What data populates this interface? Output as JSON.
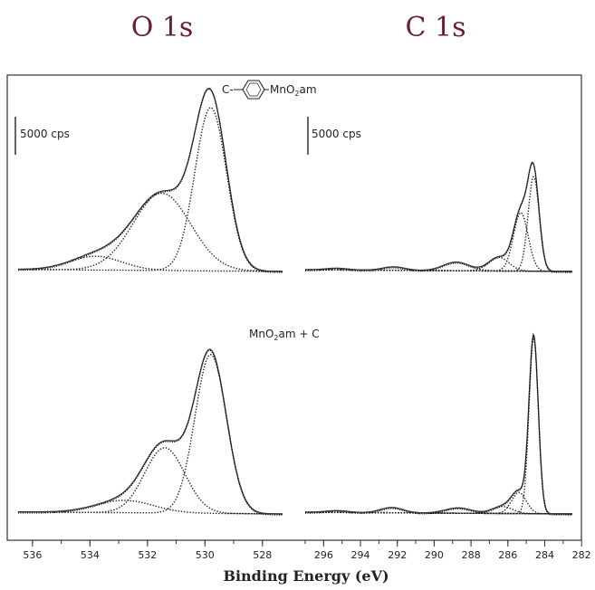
{
  "header": {
    "o1s_title": "O 1s",
    "c1s_title": "C 1s"
  },
  "chart_data": {
    "type": "line",
    "xlabel": "Binding Energy (eV)",
    "x_direction": "decreasing-left-to-right",
    "scale_bar_label": "5000 cps",
    "o1s_axis": {
      "xlim": [
        536.5,
        527.3
      ],
      "ticks": [
        536,
        534,
        532,
        530,
        528
      ]
    },
    "c1s_axis": {
      "xlim": [
        297,
        282.5
      ],
      "ticks": [
        296,
        294,
        292,
        290,
        288,
        286,
        284,
        282
      ]
    },
    "samples": [
      {
        "name_main": "C-",
        "name_after": "MnO",
        "name_sub": "2",
        "name_tail": "am",
        "structure_icon": "benzene-ring-icon",
        "o1s_components": [
          {
            "center": 529.8,
            "height": 0.95,
            "width": 0.55
          },
          {
            "center": 531.5,
            "height": 0.45,
            "width": 1.0
          },
          {
            "center": 533.8,
            "height": 0.08,
            "width": 0.9
          }
        ],
        "c1s_components": [
          {
            "center": 284.6,
            "height": 0.55,
            "width": 0.3
          },
          {
            "center": 285.3,
            "height": 0.34,
            "width": 0.4
          },
          {
            "center": 286.5,
            "height": 0.08,
            "width": 0.55
          },
          {
            "center": 288.8,
            "height": 0.05,
            "width": 0.7
          },
          {
            "center": 292.2,
            "height": 0.02,
            "width": 0.6
          },
          {
            "center": 295.3,
            "height": 0.01,
            "width": 0.6
          }
        ]
      },
      {
        "name_main": "MnO",
        "name_sub": "2",
        "name_tail": "am + C",
        "o1s_components": [
          {
            "center": 529.8,
            "height": 0.9,
            "width": 0.55
          },
          {
            "center": 531.4,
            "height": 0.37,
            "width": 0.7
          },
          {
            "center": 532.8,
            "height": 0.07,
            "width": 1.0
          }
        ],
        "c1s_components": [
          {
            "center": 284.6,
            "height": 1.0,
            "width": 0.25
          },
          {
            "center": 285.4,
            "height": 0.12,
            "width": 0.4
          },
          {
            "center": 286.3,
            "height": 0.04,
            "width": 0.55
          },
          {
            "center": 288.7,
            "height": 0.03,
            "width": 0.7
          },
          {
            "center": 292.3,
            "height": 0.03,
            "width": 0.6
          },
          {
            "center": 295.3,
            "height": 0.01,
            "width": 0.6
          }
        ]
      }
    ]
  }
}
